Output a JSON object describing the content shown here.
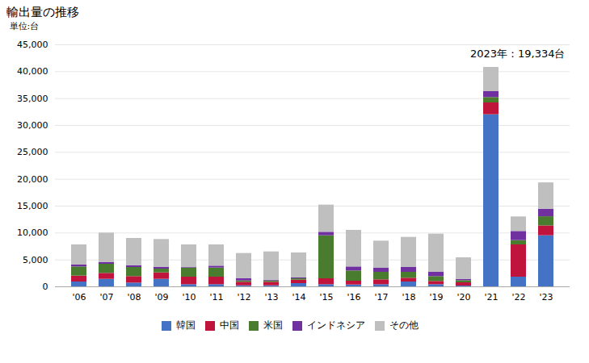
{
  "chart_data": {
    "type": "bar",
    "stacked": true,
    "title": "輸出量の推移",
    "y_label": "単位:台",
    "annotations": [
      "2023年：19,334台"
    ],
    "categories": [
      "'06",
      "'07",
      "'08",
      "'09",
      "'10",
      "'11",
      "'12",
      "'13",
      "'14",
      "'15",
      "'16",
      "'17",
      "'18",
      "'19",
      "'20",
      "'21",
      "'22",
      "'23"
    ],
    "series": [
      {
        "name": "韓国",
        "color": "#4472c4",
        "values": [
          900,
          1400,
          700,
          1400,
          400,
          400,
          200,
          200,
          600,
          400,
          350,
          400,
          900,
          400,
          150,
          32000,
          1800,
          9500
        ]
      },
      {
        "name": "中国",
        "color": "#c0143c",
        "values": [
          1100,
          1100,
          1200,
          1200,
          1400,
          1400,
          650,
          650,
          650,
          1100,
          700,
          900,
          700,
          600,
          600,
          2200,
          6000,
          1834
        ]
      },
      {
        "name": "米国",
        "color": "#4a7c2f",
        "values": [
          1700,
          1700,
          1700,
          700,
          1700,
          1700,
          250,
          250,
          250,
          8000,
          1900,
          1400,
          1100,
          900,
          400,
          1000,
          800,
          1700
        ]
      },
      {
        "name": "インドネシア",
        "color": "#7030a0",
        "values": [
          350,
          350,
          350,
          350,
          150,
          350,
          450,
          150,
          150,
          650,
          750,
          750,
          900,
          800,
          250,
          1100,
          1700,
          1400
        ]
      },
      {
        "name": "その他",
        "color": "#bfbfbf",
        "values": [
          3750,
          5450,
          5050,
          5150,
          4150,
          3950,
          4650,
          5250,
          4650,
          5050,
          6800,
          5050,
          5600,
          7100,
          4000,
          4500,
          2700,
          4900
        ]
      }
    ],
    "ylim": [
      0,
      45000
    ],
    "yticks": [
      0,
      {
        "value": 5000,
        "label": "5,000"
      },
      {
        "value": 10000,
        "label": "10,000"
      },
      {
        "value": 15000,
        "label": "15,000"
      },
      {
        "value": 20000,
        "label": "20,000"
      },
      {
        "value": 25000,
        "label": "25,000"
      },
      {
        "value": 30000,
        "label": "30,000"
      },
      {
        "value": 35000,
        "label": "35,000"
      },
      {
        "value": 40000,
        "label": "40,000"
      },
      {
        "value": 45000,
        "label": "45,000"
      }
    ],
    "grid": true,
    "legend": "bottom"
  }
}
